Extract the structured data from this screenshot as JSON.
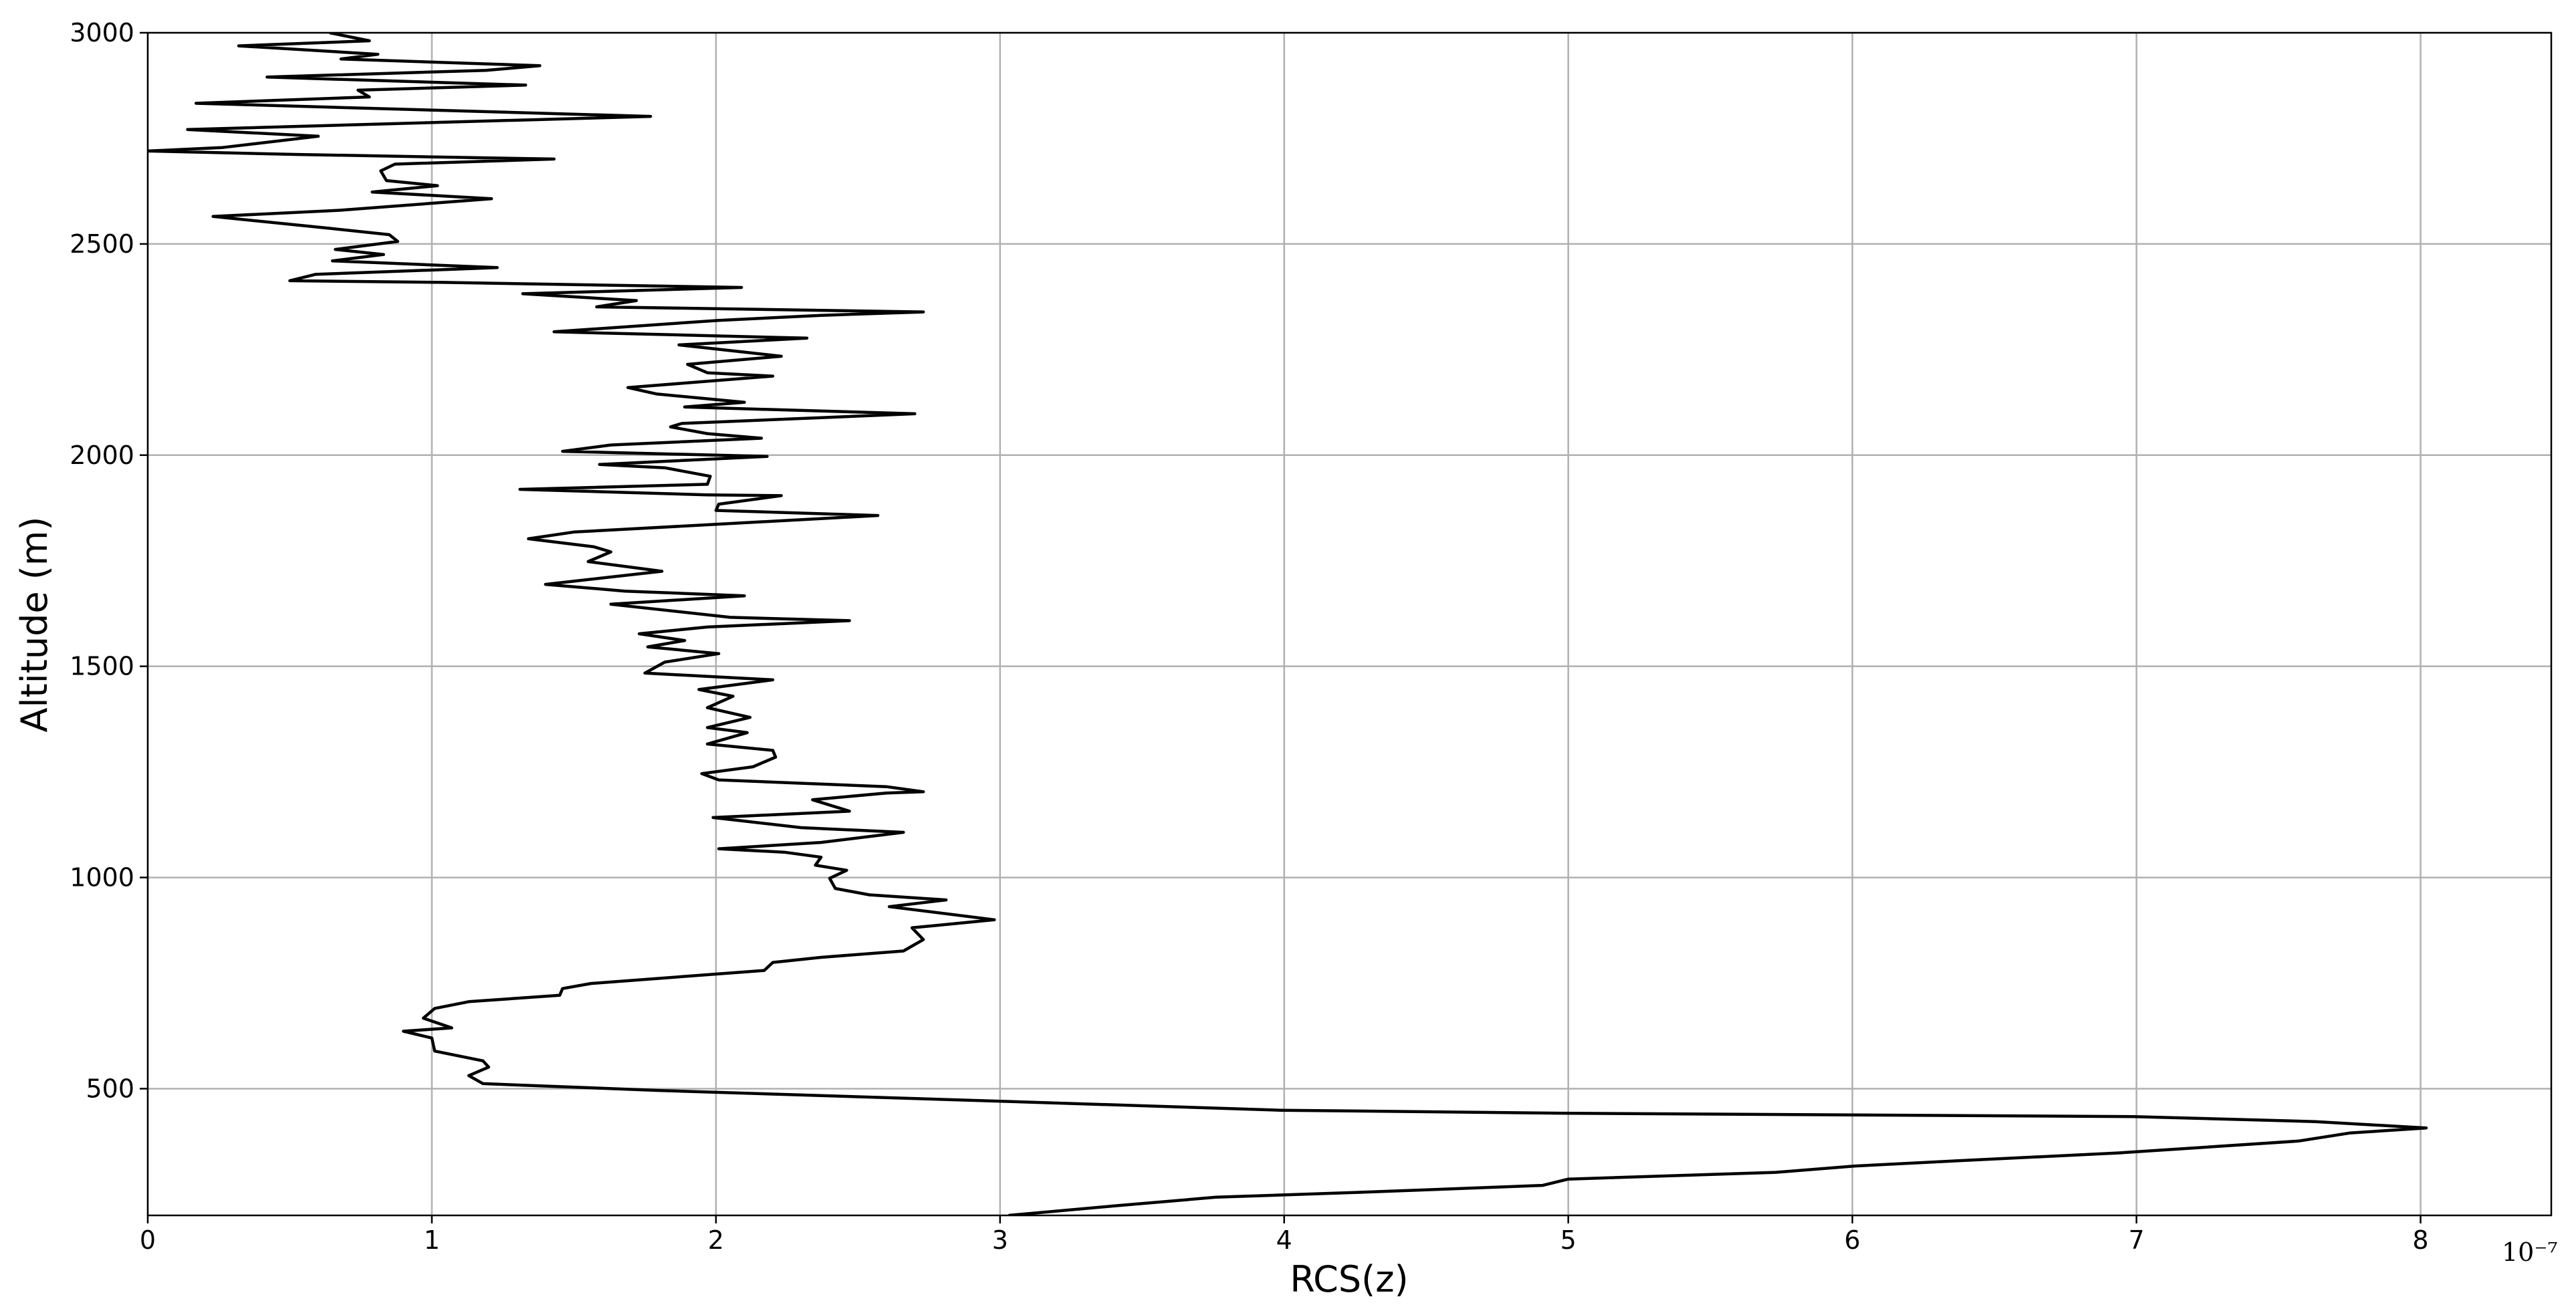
{
  "chart_data": {
    "type": "line",
    "xlabel": "RCS(z)",
    "ylabel": "Altitude (m)",
    "x_offset_label": "10⁻⁷",
    "color": "#000000",
    "grid": true,
    "xlim": [
      0,
      8.46
    ],
    "ylim": [
      200,
      3000
    ],
    "xticks": [
      0,
      1,
      2,
      3,
      4,
      5,
      6,
      7,
      8
    ],
    "yticks": [
      500,
      1000,
      1500,
      2000,
      2500,
      3000
    ],
    "x": [
      3.03,
      3.41,
      3.76,
      4.28,
      4.91,
      5.0,
      5.73,
      6.01,
      6.36,
      6.94,
      7.57,
      7.75,
      8.02,
      7.63,
      6.99,
      4.97,
      3.99,
      3.06,
      1.79,
      1.18,
      1.13,
      1.2,
      1.18,
      1.01,
      1.0,
      0.9,
      1.07,
      0.97,
      1.01,
      1.13,
      1.45,
      1.46,
      1.56,
      2.17,
      2.2,
      2.37,
      2.66,
      2.73,
      2.69,
      2.98,
      2.61,
      2.81,
      2.54,
      2.42,
      2.4,
      2.46,
      2.35,
      2.37,
      2.24,
      2.01,
      2.37,
      2.66,
      2.3,
      1.99,
      2.47,
      2.34,
      2.6,
      2.73,
      2.6,
      2.01,
      1.95,
      2.13,
      2.21,
      2.2,
      1.97,
      2.11,
      1.97,
      2.12,
      1.97,
      2.06,
      1.94,
      2.2,
      1.75,
      1.82,
      2.01,
      1.76,
      1.89,
      1.73,
      1.97,
      2.47,
      2.05,
      1.63,
      2.1,
      1.68,
      1.4,
      1.81,
      1.55,
      1.63,
      1.57,
      1.34,
      1.5,
      2.57,
      2.0,
      2.01,
      2.23,
      1.97,
      1.31,
      1.97,
      1.98,
      1.82,
      1.59,
      2.18,
      1.46,
      1.63,
      2.16,
      1.97,
      1.84,
      1.88,
      2.7,
      1.89,
      2.1,
      1.79,
      1.69,
      2.2,
      1.97,
      1.9,
      2.23,
      1.87,
      2.32,
      1.43,
      2.01,
      2.37,
      2.73,
      1.58,
      1.72,
      1.32,
      2.09,
      1.04,
      0.5,
      0.59,
      1.23,
      0.65,
      0.83,
      0.66,
      0.88,
      0.85,
      0.64,
      0.23,
      0.68,
      1.21,
      0.79,
      1.02,
      0.84,
      0.82,
      0.87,
      1.43,
      0.52,
      0.0,
      0.26,
      0.6,
      0.14,
      1.77,
      0.17,
      0.78,
      0.74,
      1.33,
      0.42,
      1.19,
      1.38,
      0.68,
      0.81,
      0.32,
      0.78,
      0.64
    ],
    "y": [
      200,
      223,
      243,
      255,
      271,
      286,
      302,
      317,
      329,
      348,
      376,
      395,
      407,
      422,
      434,
      442,
      449,
      469,
      496,
      512,
      531,
      551,
      566,
      589,
      620,
      636,
      644,
      667,
      690,
      706,
      721,
      737,
      749,
      780,
      799,
      811,
      826,
      853,
      881,
      900,
      931,
      947,
      959,
      974,
      998,
      1017,
      1029,
      1048,
      1060,
      1068,
      1083,
      1107,
      1118,
      1142,
      1157,
      1184,
      1200,
      1203,
      1215,
      1231,
      1246,
      1262,
      1285,
      1301,
      1316,
      1343,
      1355,
      1379,
      1402,
      1429,
      1445,
      1468,
      1484,
      1510,
      1530,
      1546,
      1561,
      1577,
      1593,
      1608,
      1616,
      1647,
      1667,
      1678,
      1694,
      1725,
      1748,
      1771,
      1783,
      1802,
      1818,
      1857,
      1869,
      1884,
      1904,
      1906,
      1919,
      1931,
      1950,
      1970,
      1978,
      1997,
      2009,
      2024,
      2040,
      2051,
      2067,
      2075,
      2098,
      2114,
      2125,
      2145,
      2160,
      2187,
      2195,
      2215,
      2234,
      2261,
      2277,
      2292,
      2319,
      2331,
      2339,
      2351,
      2366,
      2382,
      2397,
      2409,
      2413,
      2428,
      2444,
      2460,
      2475,
      2487,
      2506,
      2522,
      2537,
      2565,
      2580,
      2607,
      2623,
      2638,
      2650,
      2673,
      2689,
      2701,
      2712,
      2720,
      2728,
      2755,
      2771,
      2802,
      2833,
      2848,
      2864,
      2876,
      2895,
      2911,
      2922,
      2938,
      2949,
      2969,
      2981,
      3000
    ]
  }
}
